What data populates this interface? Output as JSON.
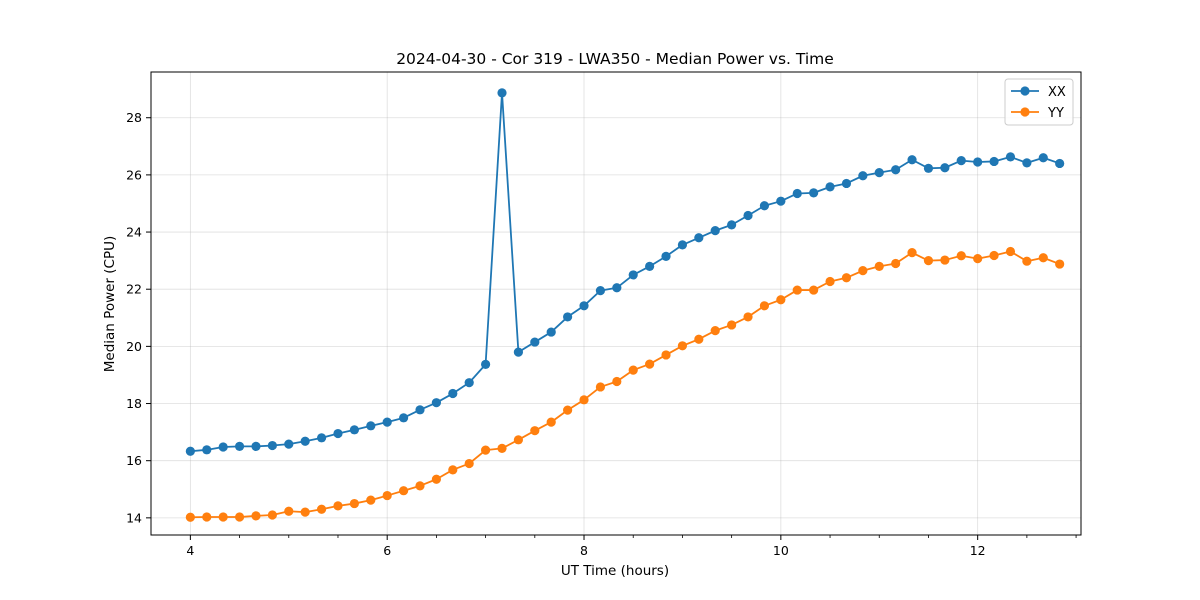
{
  "chart_data": {
    "type": "line",
    "title": "2024-04-30 - Cor 319 - LWA350 - Median Power vs. Time",
    "xlabel": "UT Time (hours)",
    "ylabel": "Median Power (CPU)",
    "xlim": [
      3.6,
      13.05
    ],
    "ylim": [
      13.4,
      29.6
    ],
    "xticks": [
      4,
      6,
      8,
      10,
      12
    ],
    "xtick_labels": [
      "4",
      "6",
      "8",
      "10",
      "12"
    ],
    "yticks": [
      14,
      16,
      18,
      20,
      22,
      24,
      26,
      28
    ],
    "ytick_labels": [
      "14",
      "16",
      "18",
      "20",
      "22",
      "24",
      "26",
      "28"
    ],
    "x_minor_step": 0.5,
    "grid": true,
    "legend_position": "top-right",
    "x": [
      4.0,
      4.1667,
      4.3333,
      4.5,
      4.6667,
      4.8333,
      5.0,
      5.1667,
      5.3333,
      5.5,
      5.6667,
      5.8333,
      6.0,
      6.1667,
      6.3333,
      6.5,
      6.6667,
      6.8333,
      7.0,
      7.1667,
      7.3333,
      7.5,
      7.6667,
      7.8333,
      8.0,
      8.1667,
      8.3333,
      8.5,
      8.6667,
      8.8333,
      9.0,
      9.1667,
      9.3333,
      9.5,
      9.6667,
      9.8333,
      10.0,
      10.1667,
      10.3333,
      10.5,
      10.6667,
      10.8333,
      11.0,
      11.1667,
      11.3333,
      11.5,
      11.6667,
      11.8333,
      12.0,
      12.1667,
      12.3333,
      12.5,
      12.6667,
      12.8333
    ],
    "series": [
      {
        "name": "XX",
        "color": "#1f77b4",
        "values": [
          16.33,
          16.38,
          16.48,
          16.5,
          16.5,
          16.53,
          16.58,
          16.68,
          16.8,
          16.95,
          17.08,
          17.22,
          17.35,
          17.5,
          17.78,
          18.03,
          18.35,
          18.73,
          19.37,
          28.87,
          19.8,
          20.15,
          20.5,
          21.03,
          21.42,
          21.95,
          22.05,
          22.5,
          22.8,
          23.15,
          23.55,
          23.8,
          24.05,
          24.25,
          24.58,
          24.92,
          25.08,
          25.35,
          25.37,
          25.58,
          25.7,
          25.97,
          26.08,
          26.18,
          26.53,
          26.23,
          26.25,
          26.5,
          26.45,
          26.47,
          26.63,
          26.42,
          26.6,
          26.4
        ]
      },
      {
        "name": "YY",
        "color": "#ff7f0e",
        "values": [
          14.02,
          14.03,
          14.03,
          14.03,
          14.07,
          14.1,
          14.23,
          14.2,
          14.3,
          14.42,
          14.5,
          14.62,
          14.78,
          14.95,
          15.12,
          15.35,
          15.68,
          15.9,
          16.37,
          16.43,
          16.73,
          17.05,
          17.35,
          17.77,
          18.13,
          18.58,
          18.77,
          19.17,
          19.38,
          19.7,
          20.02,
          20.25,
          20.55,
          20.75,
          21.03,
          21.42,
          21.63,
          21.97,
          21.97,
          22.27,
          22.4,
          22.65,
          22.8,
          22.9,
          23.28,
          23.0,
          23.02,
          23.17,
          23.07,
          23.18,
          23.32,
          22.98,
          23.1,
          22.88
        ]
      }
    ]
  }
}
